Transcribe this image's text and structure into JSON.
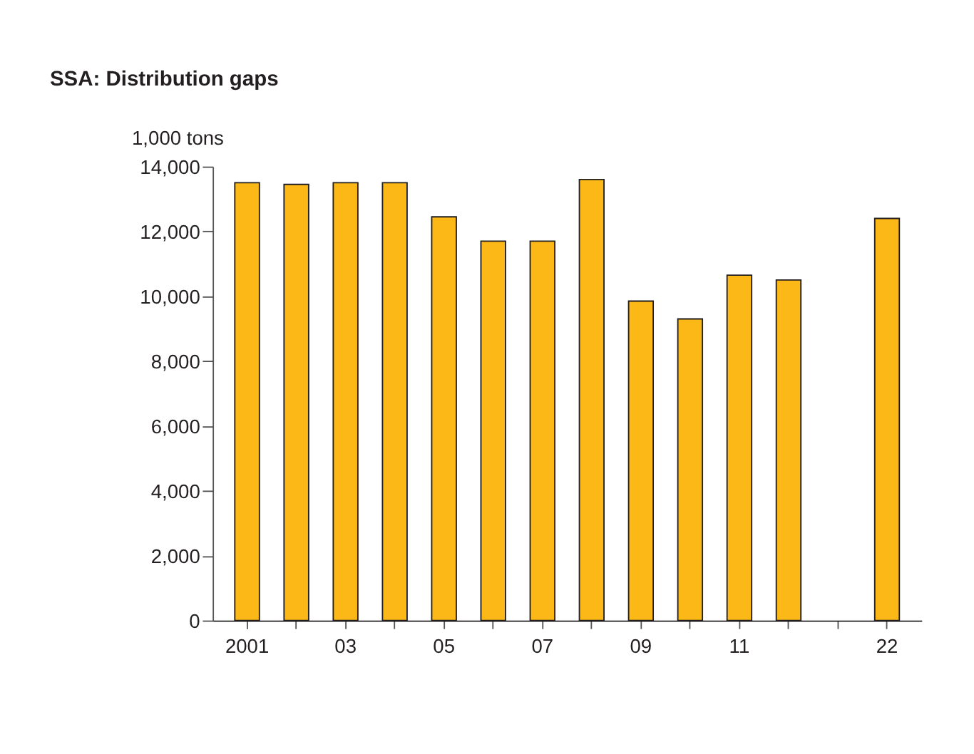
{
  "chart_data": {
    "type": "bar",
    "title": "SSA: Distribution gaps",
    "ylabel": "1,000 tons",
    "categories": [
      "2001",
      null,
      "03",
      null,
      "05",
      null,
      "07",
      null,
      "09",
      null,
      "11",
      null,
      null,
      "22"
    ],
    "values": [
      13500,
      13450,
      13500,
      13500,
      12450,
      11700,
      11700,
      13600,
      9850,
      9300,
      10650,
      10500,
      null,
      12400
    ],
    "color": "#fbb817",
    "ylim": [
      0,
      14000
    ],
    "yticks": [
      0,
      {
        "value": 2000,
        "label": "2,000"
      },
      {
        "value": 4000,
        "label": "4,000"
      },
      {
        "value": 6000,
        "label": "6,000"
      },
      {
        "value": 8000,
        "label": "8,000"
      },
      {
        "value": 10000,
        "label": "10,000"
      },
      {
        "value": 12000,
        "label": "12,000"
      },
      {
        "value": 14000,
        "label": "14,000"
      }
    ],
    "grid": false
  }
}
